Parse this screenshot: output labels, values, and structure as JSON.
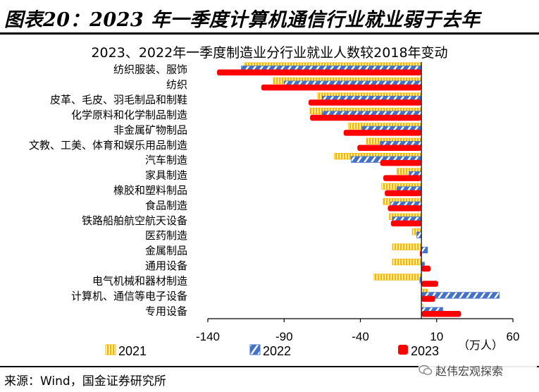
{
  "header": {
    "title": "图表20：2023 年一季度计算机通信行业就业弱于去年"
  },
  "source": {
    "text": "来源：Wind，国金证券研究所"
  },
  "watermark": {
    "text": "赵伟宏观探索"
  },
  "colors": {
    "s2021": "#F2B705",
    "s2022": "#4472C4",
    "s2023": "#FF0000"
  },
  "chart_data": {
    "type": "bar",
    "orientation": "horizontal",
    "title": "2023、2022年一季度制造业分行业就业人数较2018年变动",
    "unit_label": "（万人）",
    "xlim": [
      -140,
      60
    ],
    "xticks": [
      -140,
      -90,
      -40,
      10,
      60
    ],
    "grid": false,
    "legend_position": "bottom",
    "categories": [
      "纺织服装、服饰",
      "纺织",
      "皮革、毛皮、羽毛制品和制鞋",
      "化学原料和化学制品制造",
      "非金属矿物制品",
      "文教、工美、体育和娱乐用品制造",
      "汽车制造",
      "家具制造",
      "橡胶和塑料制品",
      "食品制造",
      "铁路船舶航空航天设备",
      "医药制造",
      "金属制品",
      "通用设备",
      "电气机械和器材制造",
      "计算机、通信等电子设备",
      "专用设备"
    ],
    "series": [
      {
        "name": "2021",
        "values": [
          -116,
          -97,
          -68,
          -73,
          -48,
          -36,
          -57,
          -16,
          -26,
          -25,
          -21,
          -6,
          -19,
          -19,
          -31,
          4,
          1
        ]
      },
      {
        "name": "2022",
        "values": [
          -118,
          -90,
          -65,
          -65,
          -39,
          -27,
          -46,
          -8,
          -16,
          -20,
          -19,
          -3,
          4,
          2,
          -1,
          51,
          14
        ]
      },
      {
        "name": "2023",
        "values": [
          -134,
          -105,
          -74,
          -73,
          -51,
          -42,
          -27,
          -25,
          -24,
          -22,
          -20,
          0,
          -1,
          6,
          11,
          9,
          26
        ]
      }
    ]
  }
}
